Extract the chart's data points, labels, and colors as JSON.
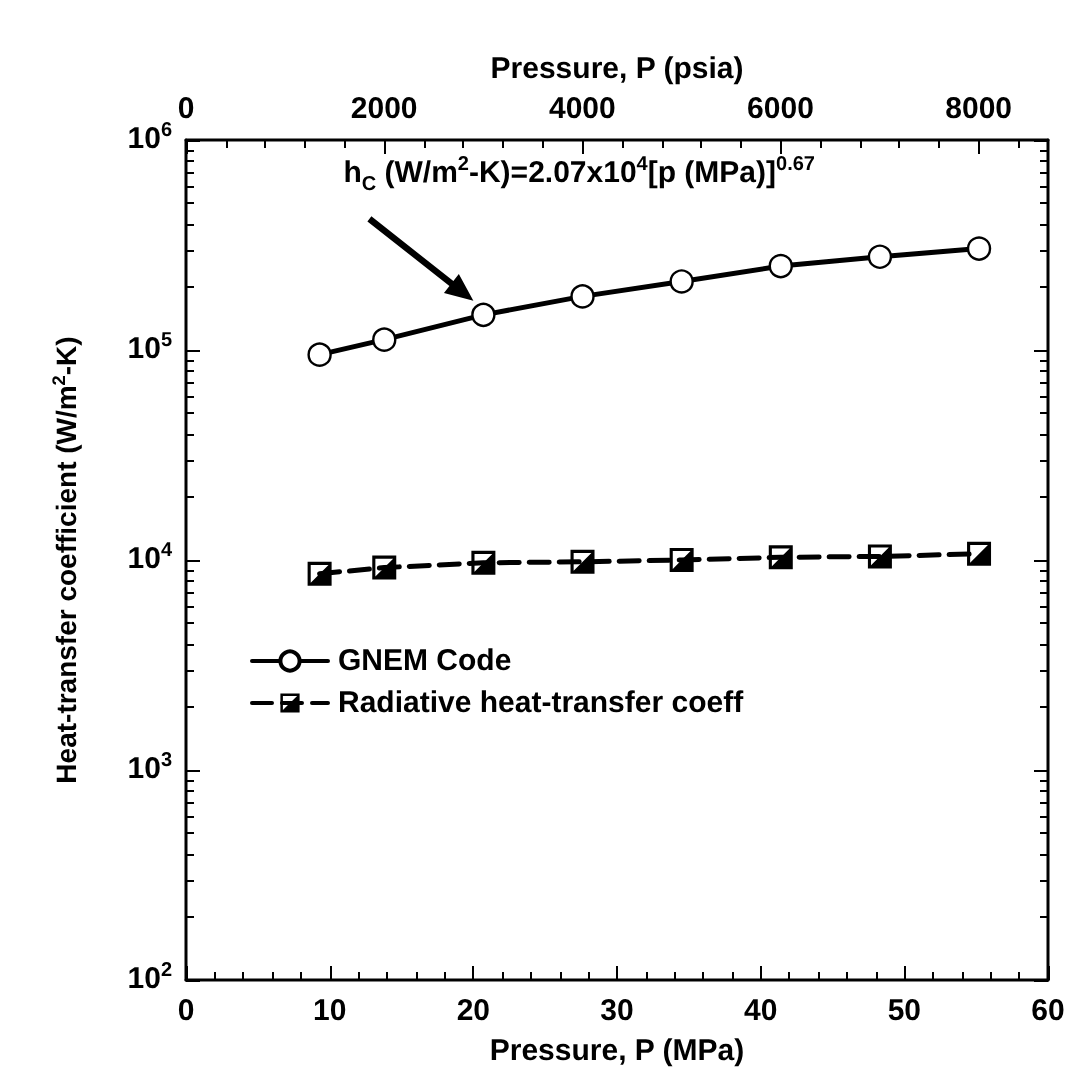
{
  "chart_data": {
    "type": "line",
    "xlabel": "Pressure, P (MPa)",
    "x2label": "Pressure, P (psia)",
    "ylabel": "Heat-transfer coefficient (W/m$^{2}$-K)",
    "x": [
      9.3,
      13.8,
      20.7,
      27.6,
      34.5,
      41.4,
      48.3,
      55.2
    ],
    "series": [
      {
        "name": "GNEM Code",
        "color": "#000000",
        "marker": "circle",
        "line_style": "solid",
        "values": [
          95000,
          112000,
          147000,
          180000,
          212000,
          251000,
          278000,
          304000
        ]
      },
      {
        "name": "Radiative heat-transfer coeff",
        "color": "#000000",
        "marker": "square",
        "line_style": "dashed",
        "values": [
          8600,
          9200,
          9700,
          9800,
          10000,
          10300,
          10400,
          10700
        ]
      }
    ],
    "xlim": [
      0,
      60
    ],
    "xticks": [
      0,
      10,
      20,
      30,
      40,
      50,
      60
    ],
    "x2lim": [
      0,
      8700
    ],
    "x2ticks": [
      0,
      2000,
      4000,
      6000,
      8000
    ],
    "ylim": [
      100,
      1000000
    ],
    "yticks": [
      {
        "value": 100,
        "label": "10$^{2}$"
      },
      {
        "value": 1000,
        "label": "10$^{3}$"
      },
      {
        "value": 10000,
        "label": "10$^{4}$"
      },
      {
        "value": 100000,
        "label": "10$^{5}$"
      },
      {
        "value": 1000000,
        "label": "10$^{6}$"
      }
    ],
    "log": "y",
    "grid": false,
    "legend": "bottom left",
    "annotations": [
      "h$_{C}$ (W/m$^{2}$-K)=2.07x10$^{4}$[p (MPa)]$^{0.67}$"
    ]
  }
}
